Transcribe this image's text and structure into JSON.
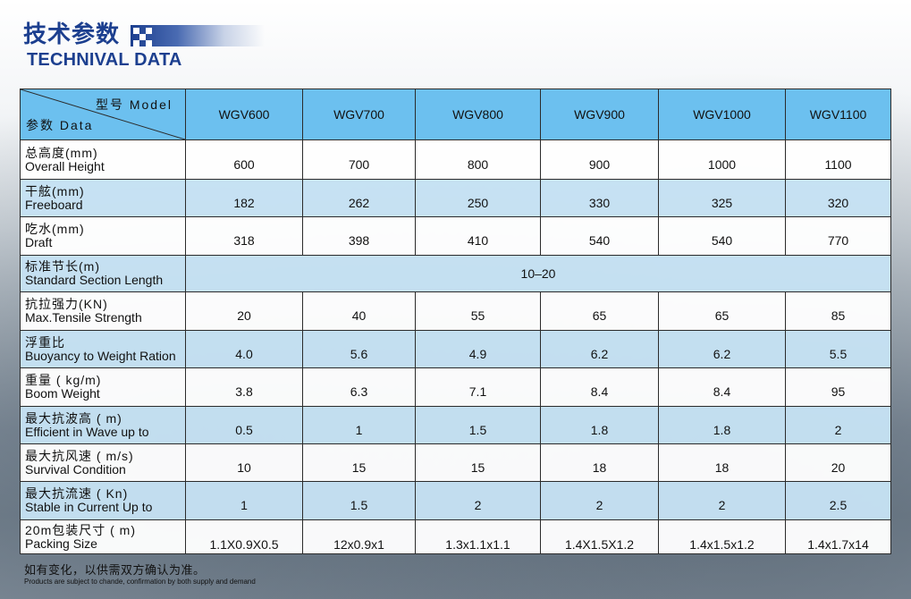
{
  "header": {
    "title_cn": "技术参数",
    "title_en": "TECHNIVAL DATA"
  },
  "table": {
    "corner_model": "型号 Model",
    "corner_data": "参数 Data",
    "models": [
      "WGV600",
      "WGV700",
      "WGV800",
      "WGV900",
      "WGV1000",
      "WGV1100"
    ],
    "rows": [
      {
        "cn": "总高度(mm)",
        "en": "Overall Height",
        "values": [
          "600",
          "700",
          "800",
          "900",
          "1000",
          "1100"
        ]
      },
      {
        "cn": "干舷(mm)",
        "en": "Freeboard",
        "values": [
          "182",
          "262",
          "250",
          "330",
          "325",
          "320"
        ]
      },
      {
        "cn": "吃水(mm)",
        "en": "Draft",
        "values": [
          "318",
          "398",
          "410",
          "540",
          "540",
          "770"
        ]
      },
      {
        "cn": "标准节长(m)",
        "en": "Standard Section Length",
        "merged_value": "10–20"
      },
      {
        "cn": "抗拉强力(KN)",
        "en": "Max.Tensile Strength",
        "values": [
          "20",
          "40",
          "55",
          "65",
          "65",
          "85"
        ]
      },
      {
        "cn": "浮重比",
        "en": "Buoyancy to Weight Ration",
        "values": [
          "4.0",
          "5.6",
          "4.9",
          "6.2",
          "6.2",
          "5.5"
        ]
      },
      {
        "cn": "重量 ( kg/m)",
        "en": "Boom Weight",
        "values": [
          "3.8",
          "6.3",
          "7.1",
          "8.4",
          "8.4",
          "95"
        ]
      },
      {
        "cn": "最大抗波高 ( m)",
        "en": "Efficient in Wave up to",
        "values": [
          "0.5",
          "1",
          "1.5",
          "1.8",
          "1.8",
          "2"
        ]
      },
      {
        "cn": "最大抗风速 ( m/s)",
        "en": "Survival Condition",
        "values": [
          "10",
          "15",
          "15",
          "18",
          "18",
          "20"
        ]
      },
      {
        "cn": "最大抗流速 ( Kn)",
        "en": "Stable in Current Up to",
        "values": [
          "1",
          "1.5",
          "2",
          "2",
          "2",
          "2.5"
        ]
      },
      {
        "cn": "20m包装尺寸 ( m)",
        "en": "Packing Size",
        "values": [
          "1.1X0.9X0.5",
          "12x0.9x1",
          "1.3x1.1x1.1",
          "1.4X1.5X1.2",
          "1.4x1.5x1.2",
          "1.4x1.7x14"
        ]
      }
    ]
  },
  "footer": {
    "note_cn": "如有变化，以供需双方确认为准。",
    "note_en": "Products are subject to chande, confirmation by both supply and demand"
  },
  "colors": {
    "title": "#1c3f8f",
    "header_row": "#6cc0ef",
    "alt_row": "#c6e2f4",
    "white_row": "#ffffff"
  }
}
